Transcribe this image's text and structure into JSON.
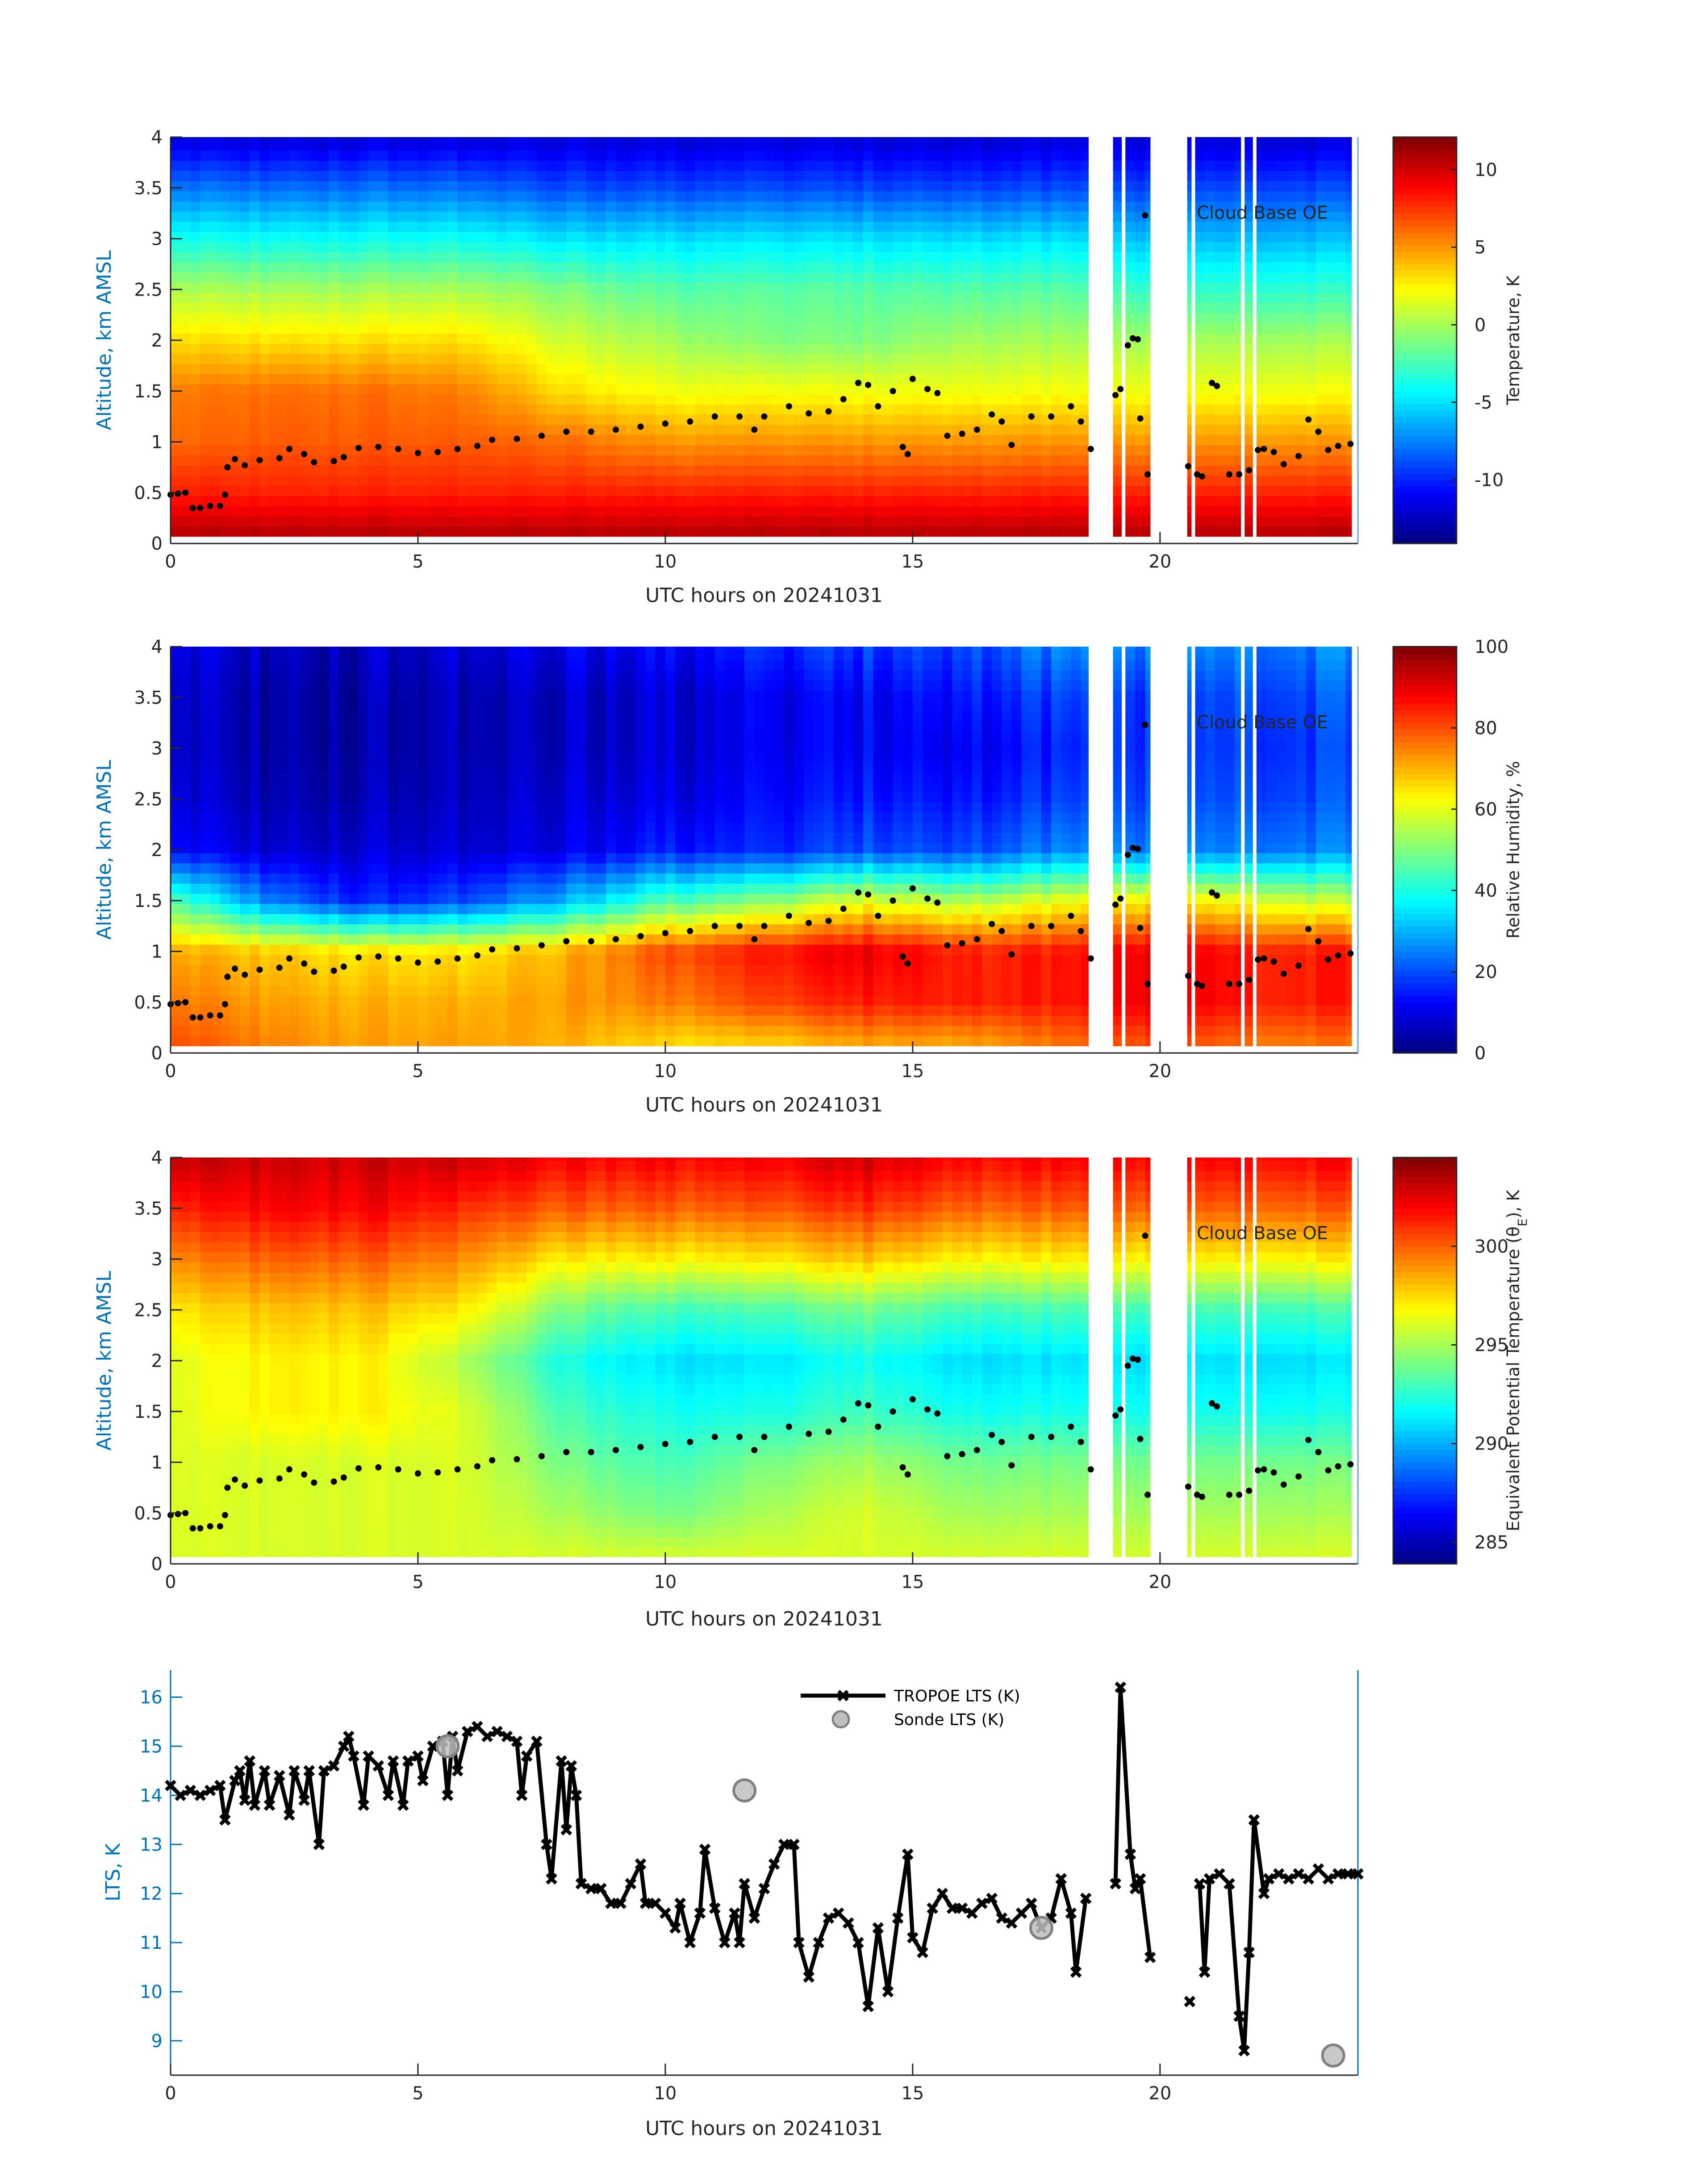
{
  "chart_data": [
    {
      "type": "heatmap",
      "id": "temperature",
      "xlabel": "UTC hours on 20241031",
      "ylabel": "Altitude, km AMSL",
      "xlim": [
        0,
        24
      ],
      "ylim": [
        0,
        4
      ],
      "xticks": [
        "0",
        "5",
        "10",
        "15",
        "20"
      ],
      "yticks": [
        "0",
        "0.5",
        "1",
        "1.5",
        "2",
        "2.5",
        "3",
        "3.5",
        "4"
      ],
      "colormap": "jet",
      "colorbar": {
        "label": "Temperature, K",
        "label_sub": "",
        "label_suffix": "",
        "range": [
          -14.1,
          12.1
        ],
        "ticks": [
          "-10",
          "-5",
          "0",
          "5",
          "10"
        ],
        "tick_values": [
          -10,
          -5,
          0,
          5,
          10
        ]
      },
      "data_segments_hours": [
        [
          0,
          18.55
        ],
        [
          19.05,
          19.22
        ],
        [
          19.3,
          19.8
        ],
        [
          20.55,
          20.63
        ],
        [
          20.71,
          21.63
        ],
        [
          21.71,
          21.87
        ],
        [
          21.95,
          23.87
        ]
      ],
      "grid_hours": [
        0,
        2,
        4,
        6,
        8,
        10,
        12,
        14,
        16,
        18,
        20,
        22,
        24
      ],
      "grid_altitudes_km": [
        0.05,
        0.5,
        1,
        1.5,
        2,
        2.5,
        3,
        3.5,
        4
      ],
      "values": [
        [
          11,
          8,
          6,
          5.5,
          3,
          0,
          -4,
          -8,
          -12
        ],
        [
          11,
          8,
          6.5,
          6,
          3,
          0,
          -4,
          -8,
          -12
        ],
        [
          11,
          8,
          6.5,
          6,
          3,
          0,
          -4,
          -8,
          -12
        ],
        [
          11,
          8,
          6.5,
          5.5,
          3,
          0,
          -4,
          -8,
          -12
        ],
        [
          11,
          8,
          6,
          3,
          1,
          -1,
          -5,
          -9,
          -12
        ],
        [
          11,
          8,
          5,
          2,
          0,
          -2,
          -5,
          -9,
          -12
        ],
        [
          11,
          8,
          5,
          2,
          -1,
          -2,
          -5,
          -9,
          -12
        ],
        [
          11,
          8,
          5,
          2,
          -1,
          -2,
          -5,
          -9,
          -12
        ],
        [
          11,
          8,
          5,
          2,
          0,
          -2,
          -5,
          -9,
          -12
        ],
        [
          11,
          8,
          5,
          2,
          0,
          -2,
          -5,
          -9,
          -12
        ],
        [
          11,
          8,
          5,
          2,
          0,
          -3,
          -6,
          -9,
          -12
        ],
        [
          11,
          8,
          5,
          2,
          0,
          -3,
          -6,
          -9,
          -12
        ],
        [
          11,
          8,
          5,
          2,
          0,
          -3,
          -6,
          -9,
          -12
        ]
      ],
      "legend": {
        "label": "Cloud Base OE",
        "placement": "top-right"
      }
    },
    {
      "type": "heatmap",
      "id": "relative-humidity",
      "xlabel": "UTC hours on 20241031",
      "ylabel": "Altitude, km AMSL",
      "xlim": [
        0,
        24
      ],
      "ylim": [
        0,
        4
      ],
      "xticks": [
        "0",
        "5",
        "10",
        "15",
        "20"
      ],
      "yticks": [
        "0",
        "0.5",
        "1",
        "1.5",
        "2",
        "2.5",
        "3",
        "3.5",
        "4"
      ],
      "colormap": "jet",
      "colorbar": {
        "label": "Relative Humidity, %",
        "label_sub": "",
        "label_suffix": "",
        "range": [
          0,
          100
        ],
        "ticks": [
          "0",
          "20",
          "40",
          "60",
          "80",
          "100"
        ],
        "tick_values": [
          0,
          20,
          40,
          60,
          80,
          100
        ]
      },
      "data_segments_hours": [
        [
          0,
          18.55
        ],
        [
          19.05,
          19.22
        ],
        [
          19.3,
          19.8
        ],
        [
          20.55,
          20.63
        ],
        [
          20.71,
          21.63
        ],
        [
          21.71,
          21.87
        ],
        [
          21.95,
          23.87
        ]
      ],
      "grid_hours": [
        0,
        2,
        4,
        6,
        8,
        10,
        12,
        14,
        16,
        18,
        20,
        22,
        24
      ],
      "grid_altitudes_km": [
        0.05,
        0.5,
        1,
        1.5,
        2,
        2.5,
        3,
        3.5,
        4
      ],
      "values": [
        [
          80,
          75,
          70,
          45,
          12,
          8,
          6,
          6,
          8
        ],
        [
          75,
          72,
          68,
          25,
          8,
          5,
          4,
          4,
          6
        ],
        [
          72,
          70,
          65,
          15,
          8,
          5,
          4,
          4,
          6
        ],
        [
          72,
          70,
          65,
          20,
          8,
          6,
          5,
          5,
          8
        ],
        [
          70,
          72,
          70,
          30,
          10,
          8,
          6,
          6,
          10
        ],
        [
          65,
          75,
          80,
          45,
          15,
          10,
          8,
          8,
          12
        ],
        [
          65,
          80,
          85,
          50,
          15,
          12,
          10,
          10,
          15
        ],
        [
          70,
          85,
          90,
          60,
          20,
          15,
          12,
          12,
          18
        ],
        [
          70,
          85,
          85,
          55,
          20,
          15,
          12,
          15,
          20
        ],
        [
          75,
          85,
          85,
          60,
          25,
          18,
          15,
          18,
          25
        ],
        [
          80,
          90,
          90,
          65,
          25,
          20,
          18,
          18,
          25
        ],
        [
          75,
          85,
          85,
          60,
          25,
          20,
          18,
          20,
          25
        ],
        [
          75,
          85,
          85,
          55,
          25,
          20,
          18,
          20,
          25
        ]
      ],
      "legend": {
        "label": "Cloud Base OE",
        "placement": "top-right"
      }
    },
    {
      "type": "heatmap",
      "id": "equivalent-potential-temperature",
      "xlabel": "UTC hours on 20241031",
      "ylabel": "Altitude, km AMSL",
      "xlim": [
        0,
        24
      ],
      "ylim": [
        0,
        4
      ],
      "xticks": [
        "0",
        "5",
        "10",
        "15",
        "20"
      ],
      "yticks": [
        "0",
        "0.5",
        "1",
        "1.5",
        "2",
        "2.5",
        "3",
        "3.5",
        "4"
      ],
      "colormap": "jet",
      "colorbar": {
        "label": "Equivalent Potential Temperature (θ",
        "label_sub": "E",
        "label_suffix": "), K",
        "range": [
          283.9,
          304.5
        ],
        "ticks": [
          "285",
          "290",
          "295",
          "300"
        ],
        "tick_values": [
          285,
          290,
          295,
          300
        ]
      },
      "data_segments_hours": [
        [
          0,
          18.55
        ],
        [
          19.05,
          19.22
        ],
        [
          19.3,
          19.8
        ],
        [
          20.55,
          20.63
        ],
        [
          20.71,
          21.63
        ],
        [
          21.71,
          21.87
        ],
        [
          21.95,
          23.87
        ]
      ],
      "grid_hours": [
        0,
        2,
        4,
        6,
        8,
        10,
        12,
        14,
        16,
        18,
        20,
        22,
        24
      ],
      "grid_altitudes_km": [
        0.05,
        0.5,
        1,
        1.5,
        2,
        2.5,
        3,
        3.5,
        4
      ],
      "values": [
        [
          296,
          296,
          296,
          296,
          296,
          297,
          299,
          301,
          303
        ],
        [
          296,
          296,
          296,
          297,
          297,
          298,
          300,
          302,
          303
        ],
        [
          296,
          296,
          296,
          297,
          297,
          298,
          300,
          302,
          303
        ],
        [
          296,
          296,
          296,
          296,
          295,
          297,
          299,
          301,
          303
        ],
        [
          296,
          295,
          294,
          293,
          292,
          294,
          297,
          300,
          302
        ],
        [
          296,
          294,
          293,
          292,
          291,
          293,
          297,
          300,
          302
        ],
        [
          296,
          295,
          294,
          292,
          291,
          293,
          297,
          300,
          302
        ],
        [
          296,
          296,
          295,
          293,
          292,
          294,
          298,
          301,
          303
        ],
        [
          296,
          295,
          294,
          292,
          291,
          293,
          297,
          300,
          302
        ],
        [
          296,
          295,
          294,
          292,
          291,
          293,
          297,
          300,
          302
        ],
        [
          296,
          295,
          294,
          292,
          291,
          293,
          297,
          300,
          302
        ],
        [
          296,
          295,
          294,
          292,
          291,
          293,
          297,
          300,
          302
        ],
        [
          296,
          295,
          294,
          292,
          291,
          293,
          297,
          300,
          302
        ]
      ],
      "legend": {
        "label": "Cloud Base OE",
        "placement": "top-right"
      }
    },
    {
      "type": "line",
      "id": "lts",
      "xlabel": "UTC hours on 20241031",
      "ylabel": "LTS, K",
      "xlim": [
        0,
        24
      ],
      "ylim": [
        8.3,
        16.55
      ],
      "xticks": [
        "0",
        "5",
        "10",
        "15",
        "20"
      ],
      "yticks": [
        "9",
        "10",
        "11",
        "12",
        "13",
        "14",
        "15",
        "16"
      ],
      "legend_placement": "top-center",
      "series": [
        {
          "name": "TROPOE LTS (K)",
          "color": "#000000",
          "x": [
            0,
            0.2,
            0.4,
            0.6,
            0.8,
            1.0,
            1.1,
            1.3,
            1.4,
            1.5,
            1.6,
            1.7,
            1.9,
            2.0,
            2.2,
            2.4,
            2.5,
            2.7,
            2.8,
            3.0,
            3.1,
            3.3,
            3.5,
            3.6,
            3.7,
            3.9,
            4.0,
            4.2,
            4.4,
            4.5,
            4.7,
            4.8,
            5.0,
            5.1,
            5.3,
            5.5,
            5.6,
            5.7,
            5.8,
            6.0,
            6.2,
            6.4,
            6.6,
            6.8,
            7.0,
            7.1,
            7.2,
            7.4,
            7.6,
            7.7,
            7.9,
            8.0,
            8.1,
            8.2,
            8.3,
            8.5,
            8.7,
            8.9,
            9.1,
            9.3,
            9.5,
            9.6,
            9.8,
            10.0,
            10.2,
            10.3,
            10.5,
            10.7,
            10.8,
            11.0,
            11.2,
            11.4,
            11.5,
            11.6,
            11.8,
            12.0,
            12.2,
            12.4,
            12.6,
            12.7,
            12.9,
            13.1,
            13.3,
            13.5,
            13.7,
            13.9,
            14.1,
            14.3,
            14.5,
            14.7,
            14.9,
            15.0,
            15.2,
            15.4,
            15.6,
            15.8,
            16.0,
            16.2,
            16.4,
            16.6,
            16.8,
            17.0,
            17.2,
            17.4,
            17.6,
            17.8,
            18.0,
            18.2,
            18.3,
            18.5,
            18.8,
            19.1,
            19.2,
            19.4,
            19.5,
            19.6,
            19.8,
            20.2,
            20.6,
            20.7,
            20.8,
            20.9,
            21.0,
            21.2,
            21.4,
            21.6,
            21.7,
            21.8,
            21.9,
            22.1,
            22.2,
            22.4,
            22.6,
            22.8,
            23.0,
            23.2,
            23.4,
            23.6,
            23.8,
            24.0
          ],
          "y": [
            14.2,
            14.0,
            14.1,
            14.0,
            14.1,
            14.2,
            13.5,
            14.3,
            14.5,
            13.9,
            14.7,
            13.8,
            14.5,
            13.8,
            14.4,
            13.6,
            14.5,
            13.9,
            14.5,
            13.0,
            14.5,
            14.6,
            15.0,
            15.2,
            14.8,
            13.8,
            14.8,
            14.6,
            14.0,
            14.7,
            13.8,
            14.7,
            14.8,
            14.3,
            15.0,
            15.1,
            14.0,
            15.2,
            14.5,
            15.3,
            15.4,
            15.2,
            15.3,
            15.2,
            15.1,
            14.0,
            14.8,
            15.1,
            13.0,
            12.3,
            14.7,
            13.3,
            14.6,
            14.0,
            12.2,
            12.1,
            12.1,
            11.8,
            11.8,
            12.2,
            12.6,
            11.8,
            11.8,
            11.6,
            11.3,
            11.8,
            11.0,
            11.6,
            12.9,
            11.7,
            11.0,
            11.6,
            11.0,
            12.2,
            11.5,
            12.1,
            12.6,
            13.0,
            13.0,
            11.0,
            10.3,
            11.0,
            11.5,
            11.6,
            11.4,
            11.0,
            9.7,
            11.3,
            10.0,
            11.5,
            12.8,
            11.1,
            10.8,
            11.7,
            12.0,
            11.7,
            11.7,
            11.6,
            11.8,
            11.9,
            11.5,
            11.4,
            11.6,
            11.8,
            11.3,
            11.5,
            12.3,
            11.6,
            10.4,
            11.9,
            null,
            12.2,
            16.2,
            12.8,
            12.1,
            12.3,
            10.7,
            null,
            9.8,
            null,
            12.2,
            10.4,
            12.3,
            12.4,
            12.2,
            9.5,
            8.8,
            10.8,
            13.5,
            12.0,
            12.3,
            12.4,
            12.3,
            12.4,
            12.3,
            12.5,
            12.3,
            12.4,
            12.4,
            12.4
          ]
        },
        {
          "name": "Sonde LTS (K)",
          "color": "#BFBFBF",
          "x": [
            5.6,
            11.6,
            17.6,
            23.5
          ],
          "y": [
            15.0,
            14.1,
            11.3,
            8.7
          ]
        }
      ]
    }
  ],
  "cloud_base": {
    "label": "Cloud Base OE",
    "x": [
      0,
      0.15,
      0.3,
      0.45,
      0.6,
      0.8,
      1.0,
      1.1,
      1.15,
      1.3,
      1.5,
      1.8,
      2.2,
      2.4,
      2.7,
      2.9,
      3.3,
      3.5,
      3.8,
      4.2,
      4.6,
      5.0,
      5.4,
      5.8,
      6.2,
      6.5,
      7.0,
      7.5,
      8.0,
      8.5,
      9.0,
      9.5,
      10.0,
      10.5,
      11.0,
      11.5,
      11.8,
      12.0,
      12.5,
      12.9,
      13.3,
      13.6,
      13.9,
      14.1,
      14.3,
      14.6,
      14.8,
      14.9,
      15.0,
      15.3,
      15.5,
      15.7,
      16.0,
      16.3,
      16.6,
      16.8,
      17.0,
      17.4,
      17.8,
      18.2,
      18.4,
      18.6,
      19.1,
      19.2,
      19.35,
      19.45,
      19.55,
      19.6,
      19.75,
      20.57,
      20.75,
      20.85,
      21.05,
      21.15,
      21.4,
      21.6,
      21.8,
      21.98,
      22.1,
      22.3,
      22.5,
      22.8,
      23.0,
      23.2,
      23.4,
      23.6,
      23.85
    ],
    "y": [
      0.48,
      0.49,
      0.5,
      0.35,
      0.35,
      0.37,
      0.37,
      0.48,
      0.75,
      0.83,
      0.77,
      0.82,
      0.84,
      0.93,
      0.88,
      0.8,
      0.81,
      0.85,
      0.94,
      0.95,
      0.93,
      0.89,
      0.9,
      0.93,
      0.96,
      1.02,
      1.03,
      1.06,
      1.1,
      1.1,
      1.12,
      1.15,
      1.18,
      1.2,
      1.25,
      1.25,
      1.12,
      1.25,
      1.35,
      1.28,
      1.3,
      1.42,
      1.58,
      1.56,
      1.35,
      1.5,
      0.95,
      0.88,
      1.62,
      1.52,
      1.48,
      1.06,
      1.08,
      1.12,
      1.27,
      1.2,
      0.97,
      1.25,
      1.25,
      1.35,
      1.2,
      0.93,
      1.46,
      1.52,
      1.95,
      2.02,
      2.01,
      1.23,
      0.68,
      0.76,
      0.68,
      0.66,
      1.58,
      1.55,
      0.68,
      0.68,
      0.72,
      0.92,
      0.93,
      0.9,
      0.78,
      0.86,
      1.22,
      1.1,
      0.92,
      0.96,
      0.98
    ]
  }
}
